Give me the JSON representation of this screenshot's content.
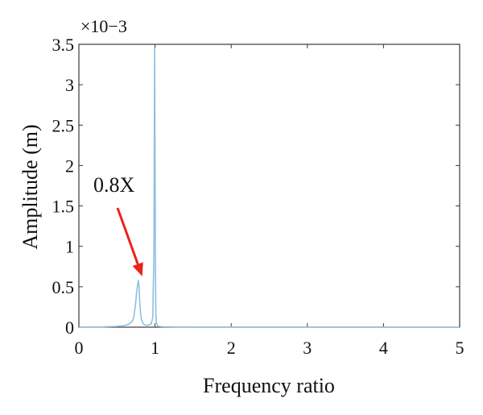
{
  "chart_data": {
    "type": "line",
    "title": "",
    "xlabel": "Frequency ratio",
    "ylabel": "Amplitude (m)",
    "xlim": [
      0,
      5
    ],
    "ylim": [
      0,
      3.5
    ],
    "y_multiplier_label": "×10−3",
    "x_ticks": [
      0,
      1,
      2,
      3,
      4,
      5
    ],
    "x_tick_labels": [
      "0",
      "1",
      "2",
      "3",
      "4",
      "5"
    ],
    "y_ticks": [
      0,
      0.5,
      1,
      1.5,
      2,
      2.5,
      3,
      3.5
    ],
    "y_tick_labels": [
      "0",
      "0.5",
      "1",
      "1.5",
      "2",
      "2.5",
      "3",
      "3.5"
    ],
    "grid": false,
    "series": [
      {
        "color": "#8fbfe0",
        "x": [
          0.0,
          0.3,
          0.5,
          0.6,
          0.65,
          0.7,
          0.72,
          0.74,
          0.76,
          0.78,
          0.79,
          0.8,
          0.81,
          0.82,
          0.84,
          0.86,
          0.9,
          0.95,
          0.97,
          0.985,
          0.99,
          0.995,
          1.0,
          1.005,
          1.01,
          1.015,
          1.03,
          1.05,
          1.1,
          1.5,
          2.0,
          3.0,
          4.0,
          5.0
        ],
        "y": [
          0.0,
          0.003,
          0.01,
          0.02,
          0.035,
          0.07,
          0.12,
          0.25,
          0.45,
          0.58,
          0.5,
          0.3,
          0.17,
          0.1,
          0.05,
          0.03,
          0.02,
          0.04,
          0.12,
          0.9,
          2.2,
          3.45,
          2.1,
          0.8,
          0.2,
          0.06,
          0.02,
          0.01,
          0.005,
          0.001,
          0.0005,
          0.0002,
          0.0001,
          0.0
        ]
      }
    ],
    "annotations": [
      {
        "text": "0.8X",
        "points_to": {
          "x": 0.8,
          "y": 0.55
        },
        "arrow_color": "#e8241c"
      }
    ]
  }
}
